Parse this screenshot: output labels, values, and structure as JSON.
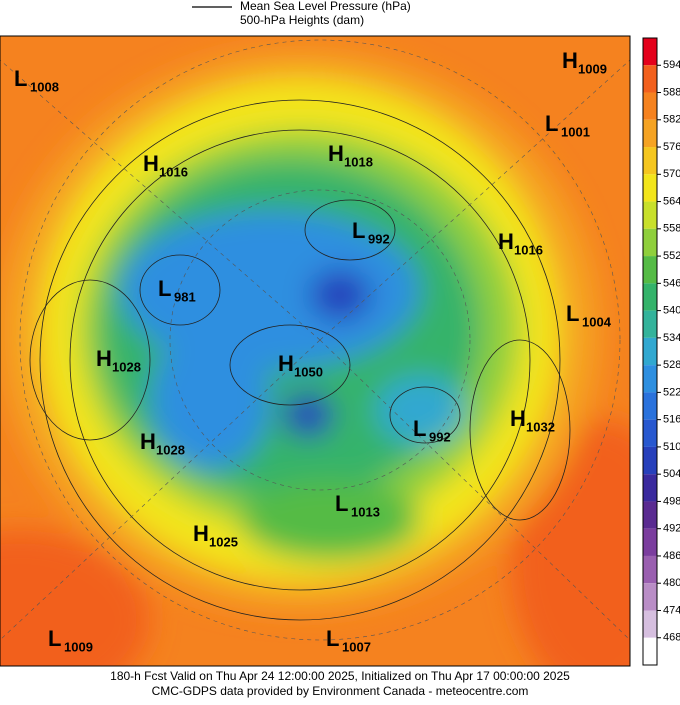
{
  "legend": {
    "line1": "Mean Sea Level Pressure (hPa)",
    "line2": "500-hPa Heights (dam)"
  },
  "colorbar": {
    "ticks": [
      594,
      588,
      582,
      576,
      570,
      564,
      558,
      552,
      546,
      540,
      534,
      528,
      522,
      516,
      510,
      504,
      498,
      492,
      486,
      480,
      474,
      468
    ],
    "colors": [
      "#e4001b",
      "#f2601d",
      "#f5821f",
      "#f5a323",
      "#f5c61f",
      "#f3e51b",
      "#c8e02b",
      "#8fcf3c",
      "#55bb45",
      "#34b36a",
      "#33b39b",
      "#31a8d0",
      "#2e8fe0",
      "#2a72dc",
      "#2858cf",
      "#2740bb",
      "#3a2a9e",
      "#5a2b91",
      "#7b3d9e",
      "#9a5fb0",
      "#b98dc6",
      "#d6bfdf",
      "#ffffff"
    ]
  },
  "centers": [
    {
      "letter": "L",
      "value": 1008
    },
    {
      "letter": "H",
      "value": 1009
    },
    {
      "letter": "L",
      "value": 1001
    },
    {
      "letter": "H",
      "value": 1016
    },
    {
      "letter": "H",
      "value": 1018
    },
    {
      "letter": "L",
      "value": 992
    },
    {
      "letter": "H",
      "value": 1016
    },
    {
      "letter": "L",
      "value": 981
    },
    {
      "letter": "L",
      "value": 1004
    },
    {
      "letter": "H",
      "value": 1028
    },
    {
      "letter": "H",
      "value": 1050
    },
    {
      "letter": "H",
      "value": 1032
    },
    {
      "letter": "L",
      "value": 992
    },
    {
      "letter": "H",
      "value": 1028
    },
    {
      "letter": "L",
      "value": 1013
    },
    {
      "letter": "H",
      "value": 1025
    },
    {
      "letter": "L",
      "value": 1009
    },
    {
      "letter": "L",
      "value": 1007
    }
  ],
  "footer": {
    "line1": "180-h Fcst Valid on Thu Apr 24 12:00:00 2025, Initialized on Thu Apr 17 00:00:00 2025",
    "line2": "CMC-GDPS data provided by Environment Canada - meteocentre.com"
  }
}
